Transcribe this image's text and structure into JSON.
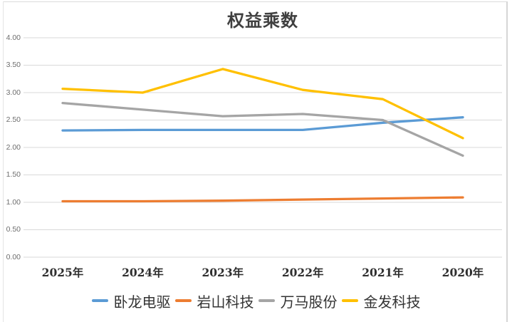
{
  "colors": {
    "background": "#FFFFFF",
    "gridline": "#D9D9D9",
    "title_text": "#3F3F3F",
    "axis_tick_text": "#6E6E6E",
    "category_text": "#2F2F2F",
    "legend_text": "#333333",
    "series_blue": "#5B9BD5",
    "series_orange": "#ED7D31",
    "series_gray": "#A5A5A5",
    "series_yellow": "#FFC000"
  },
  "chart_data": {
    "type": "line",
    "title": "权益乘数",
    "xlabel": "",
    "ylabel": "",
    "categories": [
      "2025年",
      "2024年",
      "2023年",
      "2022年",
      "2021年",
      "2020年"
    ],
    "series": [
      {
        "name": "卧龙电驱",
        "color": "#5B9BD5",
        "values": [
          2.31,
          2.32,
          2.32,
          2.32,
          2.45,
          2.55
        ]
      },
      {
        "name": "岩山科技",
        "color": "#ED7D31",
        "values": [
          1.02,
          1.02,
          1.03,
          1.05,
          1.07,
          1.09
        ]
      },
      {
        "name": "万马股份",
        "color": "#A5A5A5",
        "values": [
          2.81,
          2.69,
          2.57,
          2.61,
          2.5,
          1.85
        ]
      },
      {
        "name": "金发科技",
        "color": "#FFC000",
        "values": [
          3.07,
          3.0,
          3.43,
          3.05,
          2.88,
          2.17
        ]
      }
    ],
    "y_ticks": [
      "4.00",
      "3.50",
      "3.00",
      "2.50",
      "2.00",
      "1.50",
      "1.00",
      "0.50",
      "0.00"
    ],
    "ylim": [
      0.0,
      4.0
    ],
    "y_tick_step": 0.5,
    "grid": true,
    "legend_position": "bottom"
  }
}
